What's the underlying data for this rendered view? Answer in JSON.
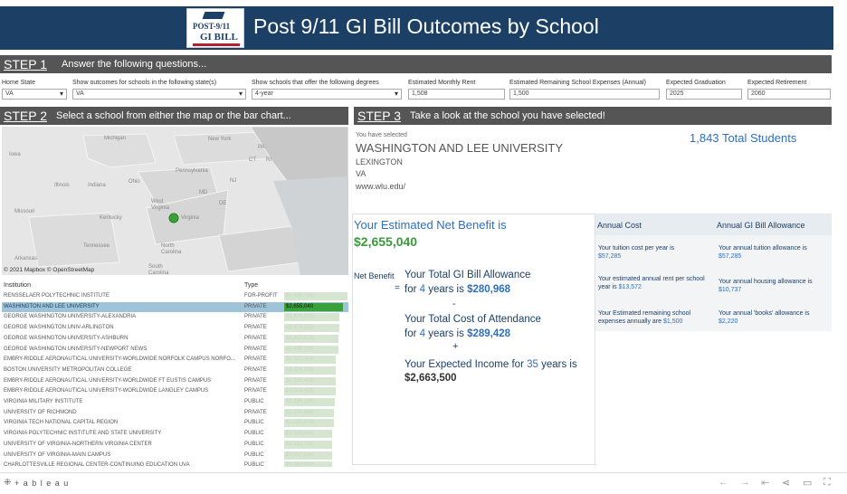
{
  "header": {
    "logo_line1": "POST-9/11",
    "logo_line2": "GI BILL",
    "title": "Post 9/11 GI Bill Outcomes by School"
  },
  "step1": {
    "num": "STEP 1",
    "text": "Answer the following questions...",
    "fields": [
      {
        "label": "Home State",
        "value": "VA"
      },
      {
        "label": "Show outcomes for schools in the following state(s)",
        "value": "VA"
      },
      {
        "label": "Show schools that offer the following degrees",
        "value": "4-year"
      },
      {
        "label": "Estimated Monthly Rent",
        "value": "1,508"
      },
      {
        "label": "Estimated Remaining School Expenses (Annual)",
        "value": "1,500"
      },
      {
        "label": "Expected Graduation",
        "value": "2025"
      },
      {
        "label": "Expected Retirement",
        "value": "2060"
      }
    ]
  },
  "step2": {
    "num": "STEP 2",
    "text": "Select a school from either the map or the bar chart..."
  },
  "step3": {
    "num": "STEP 3",
    "text": "Take a look at the school you have selected!"
  },
  "map": {
    "labels": [
      "Michigan",
      "New York",
      "Iowa",
      "Pennsylvania",
      "Illinois",
      "Indiana",
      "Ohio",
      "Missouri",
      "Kentucky",
      "West Virginia",
      "Virginia",
      "Tennessee",
      "North Carolina",
      "Arkansas",
      "South Carolina",
      "CT",
      "RI",
      "PA",
      "NJ",
      "MD",
      "DE"
    ],
    "credit": "© 2021 Mapbox © OpenStreetMap"
  },
  "table": {
    "col_institution": "Institution",
    "col_type": "Type",
    "rows": [
      {
        "name": "RENSSELAER POLYTECHNIC INSTITUTE",
        "type": "FOR-PROFIT",
        "value": "$2,856,758",
        "frac": 1.0
      },
      {
        "name": "WASHINGTON AND LEE UNIVERSITY",
        "type": "PRIVATE",
        "value": "$2,655,040",
        "frac": 0.93
      },
      {
        "name": "GEORGE WASHINGTON UNIVERSITY-ALEXANDRIA",
        "type": "PRIVATE",
        "value": "$2,476,318",
        "frac": 0.87
      },
      {
        "name": "GEORGE WASHINGTON UNIV-ARLINGTON",
        "type": "PRIVATE",
        "value": "$2,476,318",
        "frac": 0.87
      },
      {
        "name": "GEORGE WASHINGTON UNIVERSITY-ASHBURN",
        "type": "PRIVATE",
        "value": "$2,457,028",
        "frac": 0.86
      },
      {
        "name": "GEORGE WASHINGTON UNIVERSITY-NEWPORT NEWS",
        "type": "PRIVATE",
        "value": "$2,439,390",
        "frac": 0.85
      },
      {
        "name": "EMBRY-RIDDLE AERONAUTICAL UNIVERSITY-WORLDWIDE NORFOLK CAMPUS NORFO...",
        "type": "PRIVATE",
        "value": "$2,327,304",
        "frac": 0.81
      },
      {
        "name": "BOSTON UNIVERSITY METROPOLITAN COLLEGE",
        "type": "PRIVATE",
        "value": "$2,324,218",
        "frac": 0.81
      },
      {
        "name": "EMBRY-RIDDLE AERONAUTICAL UNIVERSITY-WORLDWIDE FT EUSTIS CAMPUS",
        "type": "PRIVATE",
        "value": "$2,319,420",
        "frac": 0.81
      },
      {
        "name": "EMBRY-RIDDLE AERONAUTICAL UNIVERSITY-WORLDWIDE LANGLEY CAMPUS",
        "type": "PRIVATE",
        "value": "$2,319,420",
        "frac": 0.81
      },
      {
        "name": "VIRGINIA MILITARY INSTITUTE",
        "type": "PUBLIC",
        "value": "$2,296,160",
        "frac": 0.8
      },
      {
        "name": "UNIVERSITY OF RICHMOND",
        "type": "PRIVATE",
        "value": "$2,255,988",
        "frac": 0.79
      },
      {
        "name": "VIRGINIA TECH NATIONAL CAPITAL REGION",
        "type": "PUBLIC",
        "value": "$2,226,616",
        "frac": 0.78
      },
      {
        "name": "VIRGINIA POLYTECHNIC INSTITUTE AND STATE UNIVERSITY",
        "type": "PUBLIC",
        "value": "$2,184,064",
        "frac": 0.76
      },
      {
        "name": "UNIVERSITY OF VIRGINIA-NORTHERN VIRGINIA CENTER",
        "type": "PUBLIC",
        "value": "$2,182,140",
        "frac": 0.76
      },
      {
        "name": "UNIVERSITY OF VIRGINIA-MAIN CAMPUS",
        "type": "PUBLIC",
        "value": "$2,157,064",
        "frac": 0.75
      },
      {
        "name": "CHARLOTTESVILLE REGIONAL CENTER-CONTINUING EDUCATION UVA",
        "type": "PUBLIC",
        "value": "$2,157,064",
        "frac": 0.75
      }
    ]
  },
  "school": {
    "selected_label": "You have selected",
    "name": "WASHINGTON AND LEE UNIVERSITY",
    "city": "LEXINGTON",
    "state": "VA",
    "url": "www.wlu.edu/",
    "total_students": "1,843",
    "total_students_label": "Total Students"
  },
  "benefit": {
    "title": "Your Estimated Net Benefit is",
    "amount": "$2,655,040",
    "net_label": "Net Benefit",
    "eq": "=",
    "gi_title": "Your Total GI Bill Allowance",
    "gi_for": "for",
    "gi_years": "4",
    "gi_years_is": "years is",
    "gi_amount": "$280,968",
    "minus": "-",
    "cost_title": "Your Total Cost of Attendance",
    "cost_for": "for",
    "cost_years": "4",
    "cost_years_is": "years is",
    "cost_amount": "$289,428",
    "plus": "+",
    "income_title": "Your Expected Income for",
    "income_years": "35",
    "income_years_is": "years is",
    "income_amount": "$2,663,500"
  },
  "annual": {
    "cost_header": "Annual Cost",
    "allow_header": "Annual GI Bill Allowance",
    "tuition_cost_label": "Your tuition cost per year is",
    "tuition_cost": "$57,285",
    "tuition_allow_label": "Your annual tuition allowance is",
    "tuition_allow": "$57,285",
    "rent_cost_label": "Your estimated annual rent per school year is",
    "rent_cost": "$13,572",
    "housing_allow_label": "Your annual housing allowance is",
    "housing_allow": "$10,737",
    "expense_label": "Your Estimated remaining school expenses annually are",
    "expense": "$1,500",
    "books_label": "Your annual 'books' allowance is",
    "books": "$2,220"
  },
  "footer": {
    "brand": "+ a b l e a u"
  },
  "colors": {
    "header": "#1c3f66",
    "step_bar": "#555555",
    "accent_blue": "#2e6fbf",
    "green": "#3a9a3a",
    "selected_row": "#9fc3d9"
  }
}
